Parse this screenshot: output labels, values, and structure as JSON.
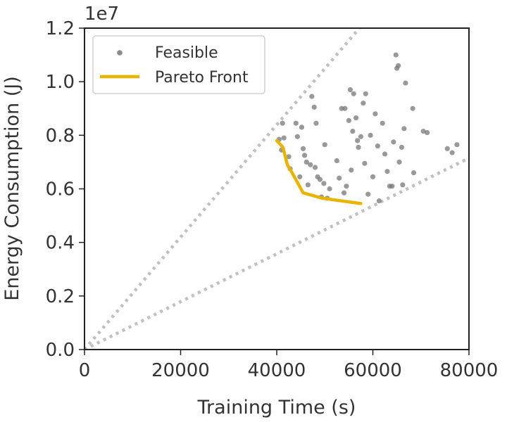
{
  "chart_data": {
    "type": "scatter",
    "xlabel": "Training Time (s)",
    "ylabel": "Energy Consumption (J)",
    "y_offset_label": "1e7",
    "xlim": [
      0,
      80000
    ],
    "ylim": [
      0,
      12000000
    ],
    "x_ticks": [
      0,
      20000,
      40000,
      60000,
      80000
    ],
    "x_tick_labels": [
      "0",
      "20000",
      "40000",
      "60000",
      "80000"
    ],
    "y_ticks": [
      0,
      2000000,
      4000000,
      6000000,
      8000000,
      10000000,
      12000000
    ],
    "y_tick_labels": [
      "0.0",
      "0.2",
      "0.4",
      "0.6",
      "0.8",
      "1.0",
      "1.2"
    ],
    "grid": false,
    "legend": {
      "placement": "top-left",
      "entries": [
        "Feasible",
        "Pareto Front"
      ]
    },
    "colors": {
      "feasible": "#777777",
      "pareto": "#e8b400",
      "bound": "#c0c0c0"
    },
    "series": [
      {
        "name": "Feasible",
        "type": "scatter",
        "points": [
          [
            40500,
            7850000
          ],
          [
            41000,
            7450000
          ],
          [
            41500,
            7900000
          ],
          [
            41200,
            8450000
          ],
          [
            42500,
            7200000
          ],
          [
            42800,
            6750000
          ],
          [
            44000,
            8450000
          ],
          [
            44300,
            7950000
          ],
          [
            44800,
            6450000
          ],
          [
            45200,
            8300000
          ],
          [
            45500,
            7500000
          ],
          [
            45800,
            7250000
          ],
          [
            46200,
            7000000
          ],
          [
            46500,
            6150000
          ],
          [
            47000,
            6900000
          ],
          [
            47300,
            9450000
          ],
          [
            47800,
            9050000
          ],
          [
            48000,
            6800000
          ],
          [
            48200,
            8450000
          ],
          [
            48500,
            6450000
          ],
          [
            49000,
            6350000
          ],
          [
            49300,
            5700000
          ],
          [
            49800,
            6200000
          ],
          [
            50000,
            7650000
          ],
          [
            50500,
            5650000
          ],
          [
            51000,
            6000000
          ],
          [
            52500,
            7050000
          ],
          [
            53000,
            6400000
          ],
          [
            53500,
            9000000
          ],
          [
            54200,
            9000000
          ],
          [
            54000,
            5850000
          ],
          [
            54500,
            6100000
          ],
          [
            55000,
            8550000
          ],
          [
            55300,
            9700000
          ],
          [
            55500,
            6700000
          ],
          [
            55800,
            8150000
          ],
          [
            56000,
            9550000
          ],
          [
            56500,
            8650000
          ],
          [
            56800,
            7800000
          ],
          [
            57000,
            7550000
          ],
          [
            57500,
            7950000
          ],
          [
            58000,
            9200000
          ],
          [
            58300,
            6950000
          ],
          [
            58500,
            9550000
          ],
          [
            59000,
            5800000
          ],
          [
            59500,
            8000000
          ],
          [
            60000,
            6450000
          ],
          [
            60500,
            8800000
          ],
          [
            61000,
            7600000
          ],
          [
            61300,
            5550000
          ],
          [
            62000,
            8450000
          ],
          [
            62500,
            7300000
          ],
          [
            63000,
            6650000
          ],
          [
            63500,
            6100000
          ],
          [
            64000,
            6100000
          ],
          [
            64300,
            7750000
          ],
          [
            64800,
            11000000
          ],
          [
            65000,
            10500000
          ],
          [
            65300,
            10600000
          ],
          [
            65500,
            7000000
          ],
          [
            66000,
            7550000
          ],
          [
            66200,
            6150000
          ],
          [
            66500,
            8250000
          ],
          [
            66800,
            9950000
          ],
          [
            68300,
            9000000
          ],
          [
            68500,
            6600000
          ],
          [
            70500,
            8150000
          ],
          [
            71300,
            8100000
          ],
          [
            75500,
            7500000
          ],
          [
            76500,
            7350000
          ],
          [
            77500,
            7650000
          ]
        ]
      },
      {
        "name": "Pareto Front",
        "type": "line",
        "points": [
          [
            40000,
            7800000
          ],
          [
            41300,
            7550000
          ],
          [
            42200,
            6900000
          ],
          [
            43200,
            6600000
          ],
          [
            45500,
            5850000
          ],
          [
            49500,
            5650000
          ],
          [
            57500,
            5450000
          ]
        ]
      }
    ],
    "reference_lines": [
      {
        "points": [
          [
            0,
            0
          ],
          [
            57200,
            12000000
          ]
        ]
      },
      {
        "points": [
          [
            0,
            0
          ],
          [
            80000,
            7150000
          ]
        ]
      }
    ]
  }
}
